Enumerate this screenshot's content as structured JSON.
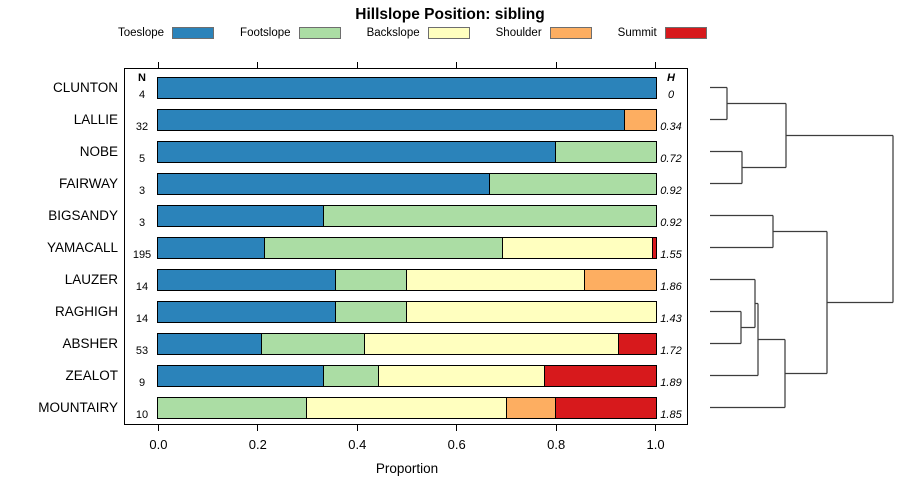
{
  "chart_data": {
    "type": "bar",
    "subtype": "horizontal-stacked-proportion-with-dendrogram",
    "title": "Hillslope Position: sibling",
    "xlabel": "Proportion",
    "xlim": [
      0,
      1
    ],
    "x_ticks": [
      "0.0",
      "0.2",
      "0.4",
      "0.6",
      "0.8",
      "1.0"
    ],
    "x_tick_values": [
      0,
      0.2,
      0.4,
      0.6,
      0.8,
      1.0
    ],
    "grid": false,
    "legend_position": "top",
    "categories": [
      "Toeslope",
      "Footslope",
      "Backslope",
      "Shoulder",
      "Summit"
    ],
    "colors": [
      "#2B83BA",
      "#ABDDA4",
      "#FFFFBF",
      "#FDAE61",
      "#D7191C"
    ],
    "n_column_header": "N",
    "h_column_header": "H",
    "rows": [
      {
        "label": "CLUNTON",
        "n": "4",
        "h": "0",
        "proportions": [
          1,
          0,
          0,
          0,
          0
        ]
      },
      {
        "label": "LALLIE",
        "n": "32",
        "h": "0.34",
        "proportions": [
          0.9375,
          0,
          0,
          0.0625,
          0
        ]
      },
      {
        "label": "NOBE",
        "n": "5",
        "h": "0.72",
        "proportions": [
          0.8,
          0.2,
          0,
          0,
          0
        ]
      },
      {
        "label": "FAIRWAY",
        "n": "3",
        "h": "0.92",
        "proportions": [
          0.667,
          0.333,
          0,
          0,
          0
        ]
      },
      {
        "label": "BIGSANDY",
        "n": "3",
        "h": "0.92",
        "proportions": [
          0.333,
          0.667,
          0,
          0,
          0
        ]
      },
      {
        "label": "YAMACALL",
        "n": "195",
        "h": "1.55",
        "proportions": [
          0.215,
          0.477,
          0.303,
          0,
          0.005
        ]
      },
      {
        "label": "LAUZER",
        "n": "14",
        "h": "1.86",
        "proportions": [
          0.357,
          0.143,
          0.357,
          0.143,
          0
        ]
      },
      {
        "label": "RAGHIGH",
        "n": "14",
        "h": "1.43",
        "proportions": [
          0.357,
          0.143,
          0.5,
          0,
          0
        ]
      },
      {
        "label": "ABSHER",
        "n": "53",
        "h": "1.72",
        "proportions": [
          0.208,
          0.208,
          0.509,
          0,
          0.075
        ]
      },
      {
        "label": "ZEALOT",
        "n": "9",
        "h": "1.89",
        "proportions": [
          0.333,
          0.111,
          0.334,
          0,
          0.222
        ]
      },
      {
        "label": "MOUNTAIRY",
        "n": "10",
        "h": "1.85",
        "proportions": [
          0,
          0.3,
          0.4,
          0.1,
          0.2
        ]
      }
    ],
    "dendrogram": {
      "leaf_order": [
        "CLUNTON",
        "LALLIE",
        "NOBE",
        "FAIRWAY",
        "BIGSANDY",
        "YAMACALL",
        "LAUZER",
        "RAGHIGH",
        "ABSHER",
        "ZEALOT",
        "MOUNTAIRY"
      ],
      "merges": [
        [
          "L0",
          "L1",
          727
        ],
        [
          "L2",
          "L3",
          742
        ],
        [
          "L7",
          "L8",
          741
        ],
        [
          "L6",
          "M2",
          755
        ],
        [
          "M3",
          "L9",
          758
        ],
        [
          "M4",
          "L10",
          785
        ],
        [
          "L4",
          "L5",
          773
        ],
        [
          "M0",
          "M1",
          786
        ],
        [
          "M6",
          "M5",
          827
        ],
        [
          "M7",
          "M8",
          893
        ]
      ]
    }
  }
}
